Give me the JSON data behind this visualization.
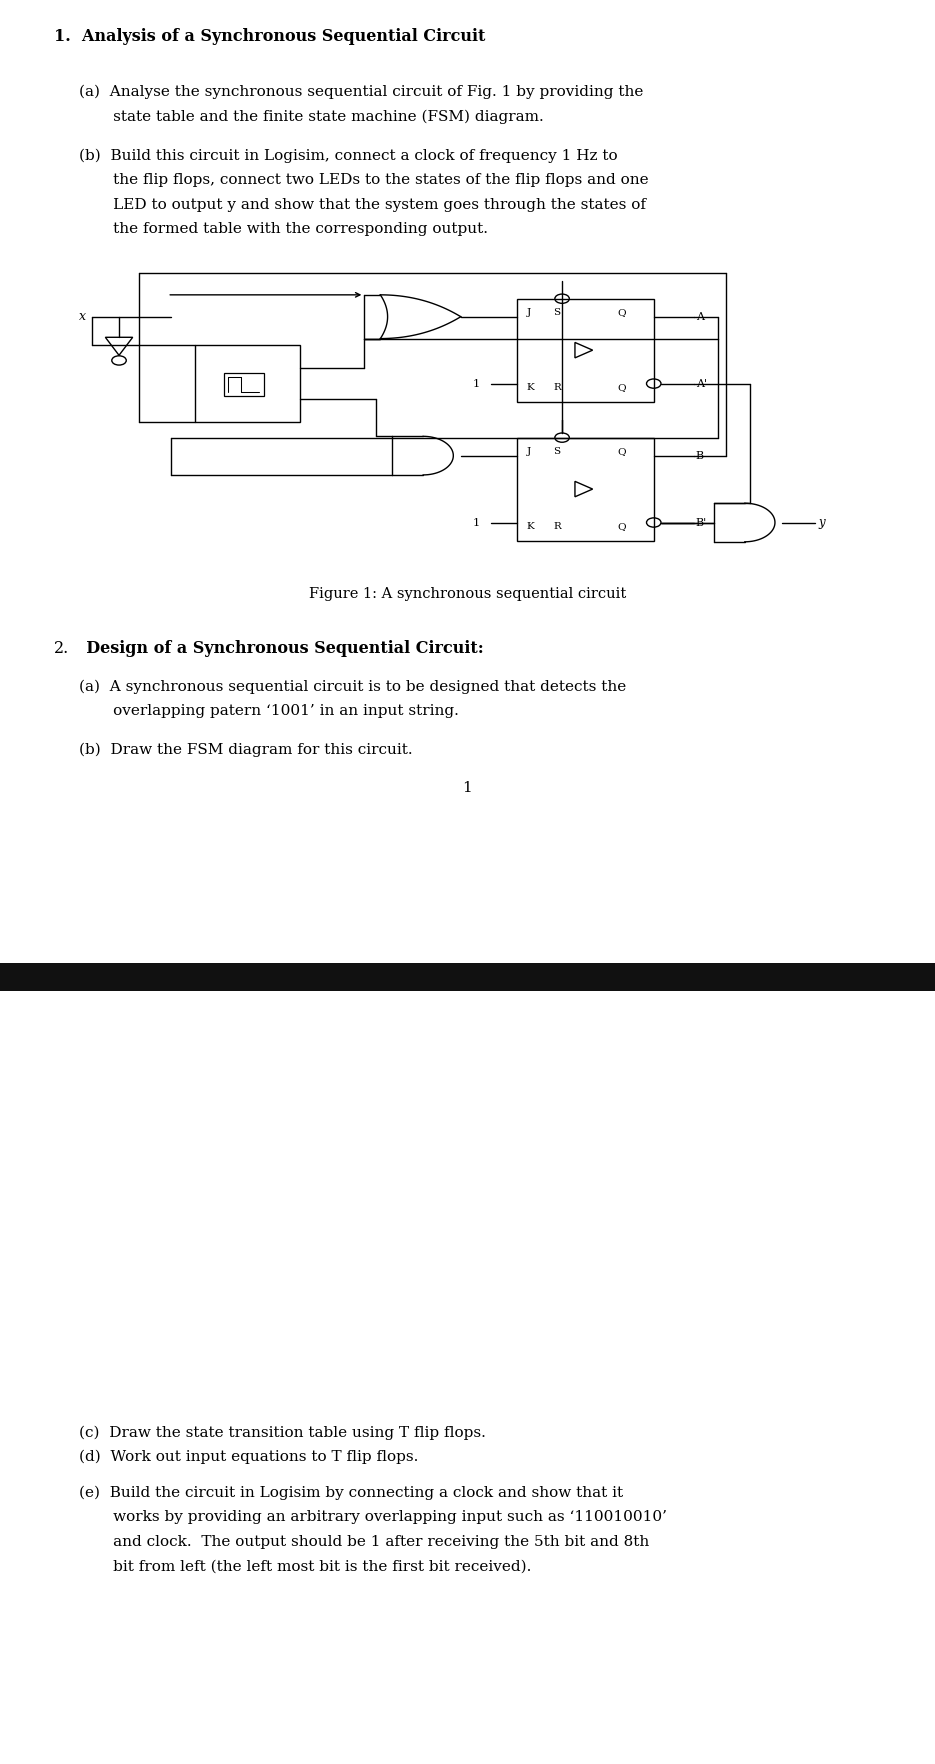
{
  "bg_color": "#ffffff",
  "text_color": "#000000",
  "page_width": 9.35,
  "page_height": 17.64,
  "section1_title": "1.  Analysis of a Synchronous Sequential Circuit",
  "line1a_1": "(a)  Analyse the synchronous sequential circuit of Fig. 1 by providing the",
  "line1a_2": "       state table and the finite state machine (FSM) diagram.",
  "line1b_1": "(b)  Build this circuit in Logisim, connect a clock of frequency 1 Hz to",
  "line1b_2": "       the flip flops, connect two LEDs to the states of the flip flops and one",
  "line1b_3": "       LED to output y and show that the system goes through the states of",
  "line1b_4": "       the formed table with the corresponding output.",
  "figure_caption": "Figure 1: A synchronous sequential circuit",
  "section2_title_num": "2.",
  "section2_title_bold": "  Design of a Synchronous Sequential Circuit",
  "section2_title_end": ":",
  "line2a_1": "(a)  A synchronous sequential circuit is to be designed that detects the",
  "line2a_2": "       overlapping patern ‘1001’ in an input string.",
  "line2b": "(b)  Draw the FSM diagram for this circuit.",
  "page_num": "1",
  "line2c": "(c)  Draw the state transition table using T flip flops.",
  "line2d": "(d)  Work out input equations to T flip flops.",
  "line2e_1": "(e)  Build the circuit in Logisim by connecting a clock and show that it",
  "line2e_2": "       works by providing an arbitrary overlapping input such as ‘110010010’",
  "line2e_3": "       and clock.  The output should be 1 after receiving the 5th bit and 8th",
  "line2e_4": "       bit from left (the left most bit is the first bit received).",
  "separator_color": "#111111",
  "lmargin": 0.058,
  "indent": 0.085
}
